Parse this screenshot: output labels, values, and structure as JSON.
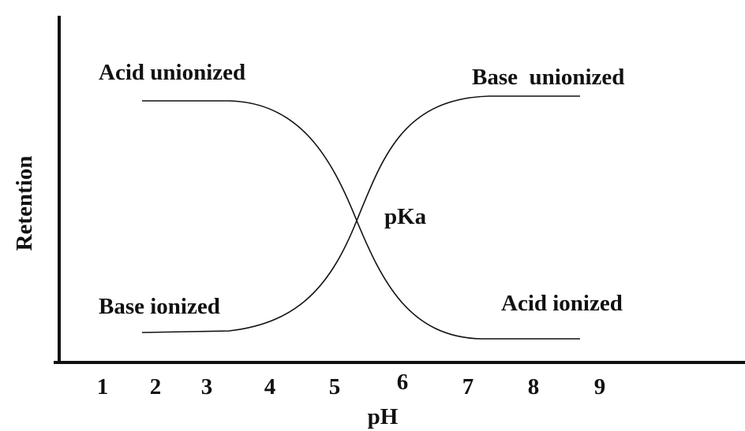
{
  "axes": {
    "y_label": "Retention",
    "x_label": "pH",
    "x_ticks": [
      1,
      2,
      3,
      4,
      5,
      6,
      7,
      8,
      9
    ]
  },
  "annotations": [
    "Acid unionized",
    "Base  unionized",
    "pKa",
    "Base ionized",
    "Acid ionized"
  ]
}
